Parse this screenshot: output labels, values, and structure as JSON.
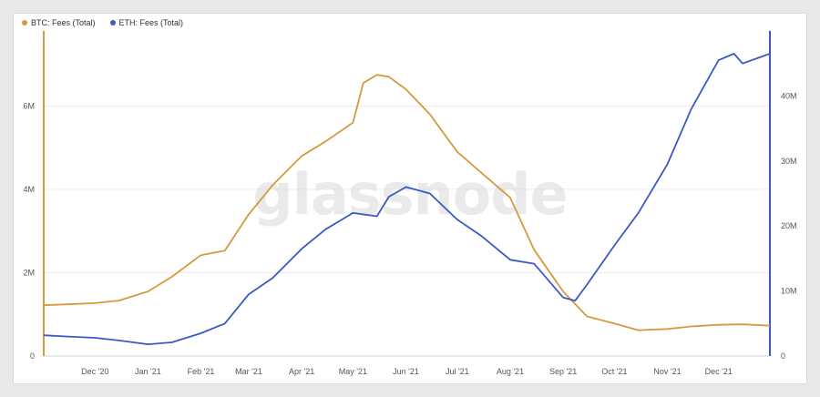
{
  "watermark": "glassnode",
  "colors": {
    "btc": "#d59a3f",
    "eth": "#3b58c4",
    "grid": "#ececec",
    "axis_text": "#555555"
  },
  "chart_data": {
    "type": "line",
    "legend_placement": "top-left",
    "grid": true,
    "x_ticks": [
      "Dec '20",
      "Jan '21",
      "Feb '21",
      "Mar '21",
      "Apr '21",
      "May '21",
      "Jun '21",
      "Jul '21",
      "Aug '21",
      "Sep '21",
      "Oct '21",
      "Nov '21",
      "Dec '21"
    ],
    "x_range": [
      "2020-11-01",
      "2021-12-31"
    ],
    "y_left": {
      "ticks": [
        0,
        2000000,
        4000000,
        6000000
      ],
      "tick_labels": [
        "0",
        "2M",
        "4M",
        "6M"
      ],
      "range": [
        0,
        7800000
      ]
    },
    "y_right": {
      "ticks": [
        0,
        10000000,
        20000000,
        30000000,
        40000000
      ],
      "tick_labels": [
        "0",
        "10M",
        "20M",
        "30M",
        "40M"
      ],
      "range": [
        0,
        50000000
      ]
    },
    "series": [
      {
        "name": "BTC: Fees (Total)",
        "axis": "left",
        "color": "#d59a3f",
        "points": [
          [
            "2020-11-01",
            1220000
          ],
          [
            "2020-11-15",
            1240000
          ],
          [
            "2020-12-01",
            1270000
          ],
          [
            "2020-12-15",
            1330000
          ],
          [
            "2021-01-01",
            1550000
          ],
          [
            "2021-01-15",
            1900000
          ],
          [
            "2021-02-01",
            2420000
          ],
          [
            "2021-02-15",
            2530000
          ],
          [
            "2021-03-01",
            3400000
          ],
          [
            "2021-03-15",
            4100000
          ],
          [
            "2021-04-01",
            4800000
          ],
          [
            "2021-04-15",
            5150000
          ],
          [
            "2021-05-01",
            5600000
          ],
          [
            "2021-05-07",
            6550000
          ],
          [
            "2021-05-15",
            6750000
          ],
          [
            "2021-05-22",
            6700000
          ],
          [
            "2021-06-01",
            6400000
          ],
          [
            "2021-06-15",
            5800000
          ],
          [
            "2021-07-01",
            4900000
          ],
          [
            "2021-07-15",
            4400000
          ],
          [
            "2021-08-01",
            3800000
          ],
          [
            "2021-08-15",
            2550000
          ],
          [
            "2021-09-01",
            1550000
          ],
          [
            "2021-09-15",
            950000
          ],
          [
            "2021-10-01",
            780000
          ],
          [
            "2021-10-15",
            620000
          ],
          [
            "2021-11-01",
            650000
          ],
          [
            "2021-11-15",
            710000
          ],
          [
            "2021-12-01",
            750000
          ],
          [
            "2021-12-15",
            760000
          ],
          [
            "2021-12-31",
            730000
          ]
        ]
      },
      {
        "name": "ETH: Fees (Total)",
        "axis": "right",
        "color": "#3b58c4",
        "points": [
          [
            "2020-11-01",
            3200000
          ],
          [
            "2020-11-15",
            3000000
          ],
          [
            "2020-12-01",
            2800000
          ],
          [
            "2020-12-15",
            2400000
          ],
          [
            "2021-01-01",
            1800000
          ],
          [
            "2021-01-15",
            2100000
          ],
          [
            "2021-02-01",
            3500000
          ],
          [
            "2021-02-15",
            5000000
          ],
          [
            "2021-03-01",
            9500000
          ],
          [
            "2021-03-15",
            12000000
          ],
          [
            "2021-04-01",
            16500000
          ],
          [
            "2021-04-15",
            19500000
          ],
          [
            "2021-05-01",
            22000000
          ],
          [
            "2021-05-15",
            21500000
          ],
          [
            "2021-05-22",
            24500000
          ],
          [
            "2021-06-01",
            26000000
          ],
          [
            "2021-06-15",
            25000000
          ],
          [
            "2021-07-01",
            21000000
          ],
          [
            "2021-07-15",
            18500000
          ],
          [
            "2021-08-01",
            14800000
          ],
          [
            "2021-08-15",
            14200000
          ],
          [
            "2021-09-01",
            9000000
          ],
          [
            "2021-09-08",
            8500000
          ],
          [
            "2021-09-15",
            11000000
          ],
          [
            "2021-10-01",
            17000000
          ],
          [
            "2021-10-15",
            22000000
          ],
          [
            "2021-11-01",
            29500000
          ],
          [
            "2021-11-15",
            38000000
          ],
          [
            "2021-12-01",
            45500000
          ],
          [
            "2021-12-10",
            46500000
          ],
          [
            "2021-12-15",
            45000000
          ],
          [
            "2021-12-31",
            46500000
          ]
        ]
      }
    ]
  }
}
